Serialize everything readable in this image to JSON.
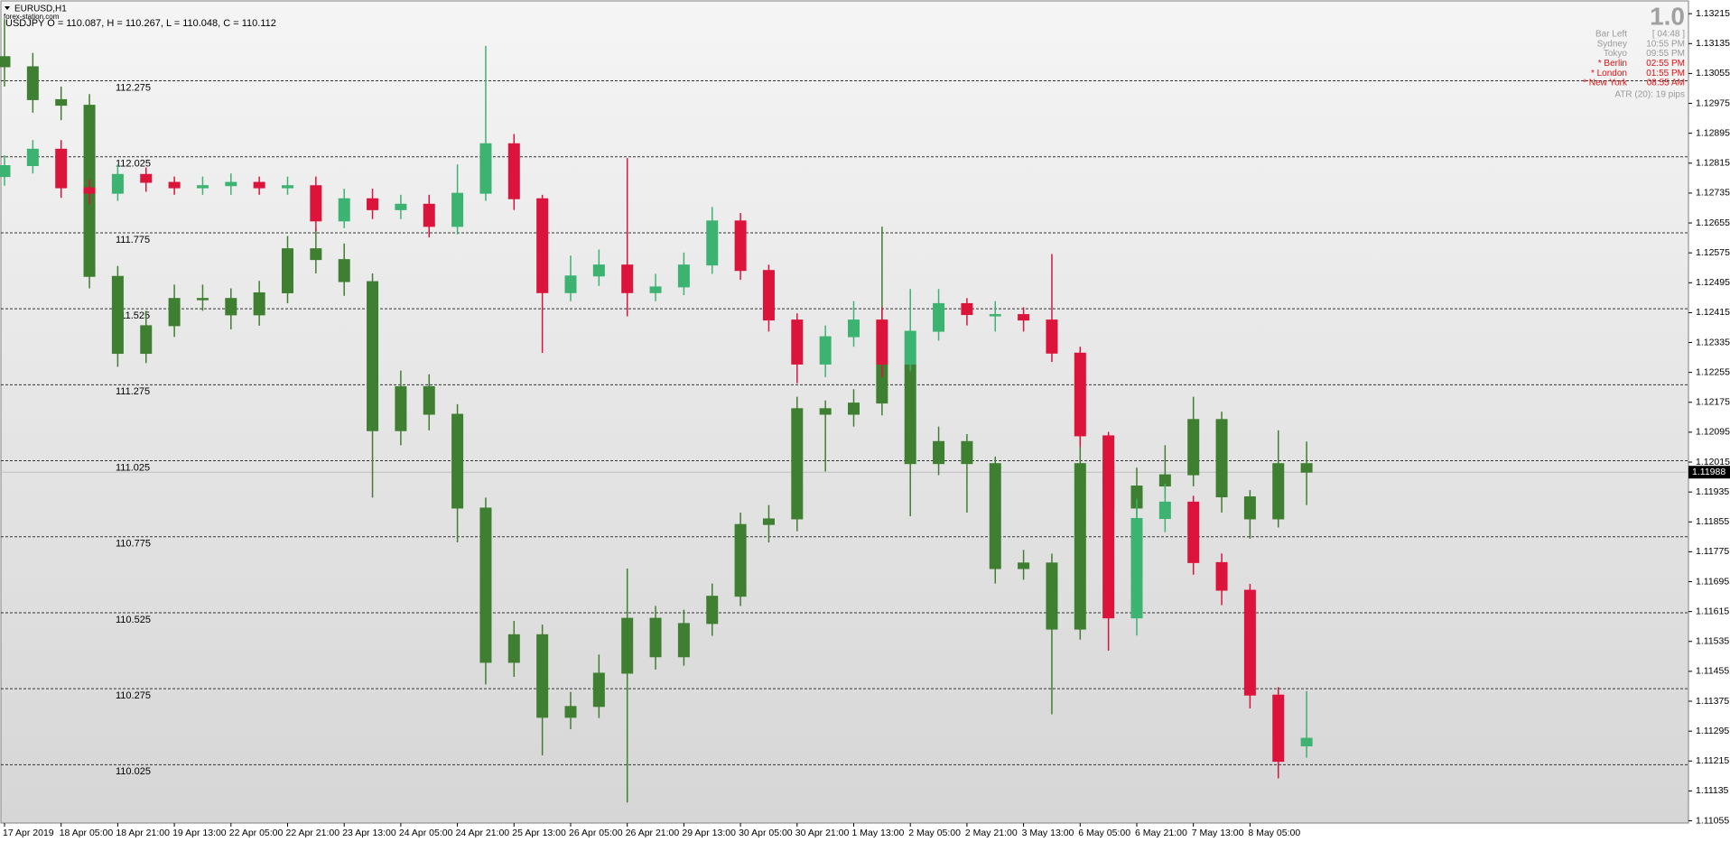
{
  "chart_data": {
    "type": "candlestick",
    "title": "EURUSD,H1",
    "watermark": "forex-station.com",
    "overlay_header": "USDJPY O = 110.087, H = 110.267, L = 110.048, C = 110.112",
    "panel": {
      "version": "1.0",
      "rows": [
        {
          "label": "Bar Left",
          "value": "[ 04:48 ]",
          "highlight": false
        },
        {
          "label": "Sydney",
          "value": "10:55 PM",
          "highlight": false
        },
        {
          "label": "Tokyo",
          "value": "09:55 PM",
          "highlight": false
        },
        {
          "label": "* Berlin",
          "value": "02:55 PM",
          "highlight": true
        },
        {
          "label": "* London",
          "value": "01:55 PM",
          "highlight": true
        },
        {
          "label": "* New York",
          "value": "08:55 AM",
          "highlight": true
        }
      ],
      "atr": "ATR (20): 19 pips"
    },
    "categories": [
      "17 Apr 2019",
      null,
      "18 Apr 05:00",
      null,
      "18 Apr 21:00",
      null,
      "19 Apr 13:00",
      null,
      "22 Apr 05:00",
      null,
      "22 Apr 21:00",
      null,
      "23 Apr 13:00",
      null,
      "24 Apr 05:00",
      null,
      "24 Apr 21:00",
      null,
      "25 Apr 13:00",
      null,
      "26 Apr 05:00",
      null,
      "26 Apr 21:00",
      null,
      "29 Apr 13:00",
      null,
      "30 Apr 05:00",
      null,
      "30 Apr 21:00",
      null,
      "1 May 13:00",
      null,
      "2 May 05:00",
      null,
      "2 May 21:00",
      null,
      "3 May 13:00",
      null,
      "6 May 05:00",
      null,
      "6 May 21:00",
      null,
      "7 May 13:00",
      null,
      "8 May 05:00",
      null,
      null
    ],
    "ylim": [
      1.13242,
      1.11049
    ],
    "yticks": [
      1.13215,
      1.13135,
      1.13055,
      1.12975,
      1.12895,
      1.12815,
      1.12735,
      1.12655,
      1.12575,
      1.12495,
      1.12415,
      1.12335,
      1.12255,
      1.12175,
      1.12095,
      1.12015,
      1.11935,
      1.11855,
      1.11775,
      1.11695,
      1.11615,
      1.11535,
      1.11455,
      1.11375,
      1.11295,
      1.11215,
      1.11135,
      1.11055
    ],
    "y2lim": [
      112.529,
      109.833
    ],
    "levels": [
      112.275,
      112.025,
      111.775,
      111.525,
      111.275,
      111.025,
      110.775,
      110.525,
      110.275,
      110.025
    ],
    "bid": 1.11988,
    "series": [
      {
        "name": "EURUSD",
        "axis": "y",
        "up_color": "#3f7f31",
        "down_color": "#3f7f31",
        "open": [
          1.131,
          1.13073,
          1.12985,
          1.1297,
          1.12512,
          1.12306,
          1.1238,
          1.12453,
          1.12453,
          1.12409,
          1.12468,
          1.12586,
          1.12557,
          1.12498,
          1.12099,
          1.12217,
          1.12143,
          1.11892,
          1.11479,
          1.11553,
          1.11332,
          1.11361,
          1.1145,
          1.11597,
          1.11494,
          1.11583,
          1.11656,
          1.11848,
          1.11863,
          1.12158,
          1.12143,
          1.12173,
          1.12276,
          1.12011,
          1.1207,
          1.12011,
          1.1173,
          1.11745,
          1.11568,
          1.12011,
          1.11892,
          1.11951,
          1.11981,
          1.12129,
          1.11922,
          1.11863,
          1.12011
        ],
        "high": [
          1.132,
          1.1311,
          1.1302,
          1.13,
          1.1254,
          1.1242,
          1.1249,
          1.1249,
          1.1248,
          1.125,
          1.1262,
          1.1264,
          1.126,
          1.1252,
          1.1226,
          1.1225,
          1.1217,
          1.1192,
          1.1159,
          1.1158,
          1.114,
          1.115,
          1.1173,
          1.1163,
          1.1162,
          1.1169,
          1.1188,
          1.119,
          1.1219,
          1.1218,
          1.1221,
          1.12645,
          1.123,
          1.1211,
          1.1209,
          1.1203,
          1.1178,
          1.1177,
          1.1209,
          1.1205,
          1.12,
          1.1206,
          1.1219,
          1.1215,
          1.1194,
          1.121,
          1.1207
        ],
        "low": [
          1.1302,
          1.1295,
          1.1293,
          1.1248,
          1.1227,
          1.1228,
          1.1235,
          1.1242,
          1.1237,
          1.1238,
          1.1244,
          1.1252,
          1.1246,
          1.1192,
          1.1206,
          1.121,
          1.118,
          1.1142,
          1.1144,
          1.1123,
          1.113,
          1.1133,
          1.11104,
          1.1146,
          1.1147,
          1.1155,
          1.1163,
          1.118,
          1.1183,
          1.1199,
          1.1211,
          1.1214,
          1.1187,
          1.1198,
          1.1188,
          1.1169,
          1.117,
          1.1134,
          1.1154,
          1.1186,
          1.1186,
          1.1192,
          1.1195,
          1.1188,
          1.1181,
          1.1184,
          1.119
        ],
        "close": [
          1.13073,
          1.12985,
          1.1297,
          1.12512,
          1.12306,
          1.1238,
          1.12453,
          1.12453,
          1.12409,
          1.12468,
          1.12586,
          1.12557,
          1.12498,
          1.12099,
          1.12217,
          1.12143,
          1.11892,
          1.11479,
          1.11553,
          1.11332,
          1.11361,
          1.1145,
          1.11597,
          1.11494,
          1.11583,
          1.11656,
          1.11848,
          1.11863,
          1.12158,
          1.12143,
          1.12173,
          1.12276,
          1.12011,
          1.1207,
          1.12011,
          1.1173,
          1.11745,
          1.11568,
          1.12011,
          1.11892,
          1.11951,
          1.11981,
          1.12129,
          1.11922,
          1.11863,
          1.12011,
          1.11988
        ]
      },
      {
        "name": "USDJPY",
        "axis": "y2",
        "up_color": "#3cb371",
        "down_color": "#dc143c",
        "open": [
          111.96,
          111.996,
          112.05,
          111.923,
          111.905,
          111.967,
          111.941,
          111.923,
          111.93,
          111.941,
          111.923,
          111.93,
          111.814,
          111.887,
          111.851,
          111.869,
          111.796,
          111.905,
          112.068,
          111.887,
          111.578,
          111.633,
          111.669,
          111.578,
          111.597,
          111.669,
          111.814,
          111.651,
          111.488,
          111.343,
          111.433,
          111.488,
          111.343,
          111.451,
          111.542,
          111.506,
          111.506,
          111.488,
          111.379,
          111.107,
          110.508,
          110.835,
          110.889,
          110.69,
          110.599,
          110.254,
          110.087
        ],
        "high": [
          112.03,
          112.08,
          112.08,
          111.95,
          112.0,
          111.99,
          111.96,
          111.96,
          111.97,
          111.96,
          111.96,
          111.96,
          111.92,
          111.92,
          111.9,
          111.9,
          112.0,
          112.39,
          112.1,
          111.9,
          111.7,
          111.72,
          112.021,
          111.64,
          111.71,
          111.86,
          111.84,
          111.67,
          111.51,
          111.47,
          111.55,
          111.53,
          111.59,
          111.59,
          111.56,
          111.55,
          111.53,
          111.705,
          111.4,
          111.12,
          110.9,
          110.95,
          110.91,
          110.72,
          110.62,
          110.28,
          110.267
        ],
        "low": [
          111.93,
          111.97,
          111.89,
          111.87,
          111.88,
          111.91,
          111.9,
          111.9,
          111.9,
          111.9,
          111.9,
          111.78,
          111.79,
          111.82,
          111.82,
          111.76,
          111.77,
          111.88,
          111.85,
          111.38,
          111.55,
          111.6,
          111.5,
          111.55,
          111.57,
          111.64,
          111.62,
          111.45,
          111.28,
          111.3,
          111.4,
          111.3,
          111.32,
          111.42,
          111.47,
          111.45,
          111.45,
          111.35,
          111.07,
          110.4,
          110.45,
          110.79,
          110.65,
          110.55,
          110.21,
          109.98,
          110.048
        ],
        "close": [
          111.996,
          112.05,
          111.923,
          111.905,
          111.967,
          111.941,
          111.923,
          111.93,
          111.941,
          111.923,
          111.93,
          111.814,
          111.887,
          111.851,
          111.869,
          111.796,
          111.905,
          112.068,
          111.887,
          111.578,
          111.633,
          111.669,
          111.578,
          111.597,
          111.669,
          111.814,
          111.651,
          111.488,
          111.343,
          111.433,
          111.488,
          111.343,
          111.451,
          111.542,
          111.506,
          111.506,
          111.488,
          111.379,
          111.107,
          110.508,
          110.835,
          110.889,
          110.69,
          110.599,
          110.254,
          110.036,
          110.112
        ]
      }
    ]
  }
}
